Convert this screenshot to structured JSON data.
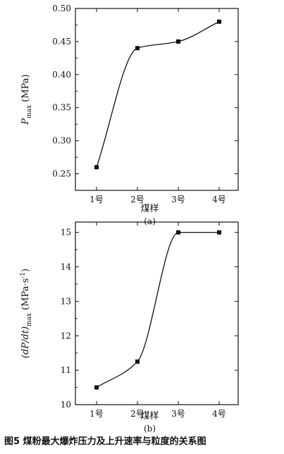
{
  "figure_caption": "图5   煤粉最大爆炸压力及上升速率与粒度的关系图",
  "chart_data": [
    {
      "type": "scatter",
      "panel_label": "(a)",
      "categories": [
        "1号",
        "2号",
        "3号",
        "4号"
      ],
      "values": [
        0.26,
        0.44,
        0.45,
        0.48
      ],
      "xlabel": "煤样",
      "ylabel": {
        "main": "P",
        "sub": "max",
        "unit": " (MPa)"
      },
      "ylim": [
        0.225,
        0.5
      ],
      "yticks": [
        "0.25",
        "0.30",
        "0.35",
        "0.40",
        "0.45",
        "0.50"
      ],
      "fit_curve": true,
      "grid": false,
      "marker_color": "#111111"
    },
    {
      "type": "scatter",
      "panel_label": "(b)",
      "categories": [
        "1号",
        "2号",
        "3号",
        "4号"
      ],
      "values": [
        10.5,
        11.25,
        15.0,
        15.0
      ],
      "xlabel": "煤样",
      "ylabel": {
        "main": "(dP/dt)",
        "sub": "max",
        "unit": " (MPa·s",
        "sup": "-1",
        "close": ")"
      },
      "ylim": [
        10,
        15.3
      ],
      "yticks": [
        "10",
        "11",
        "12",
        "13",
        "14",
        "15"
      ],
      "fit_curve": true,
      "grid": false,
      "marker_color": "#111111"
    }
  ]
}
